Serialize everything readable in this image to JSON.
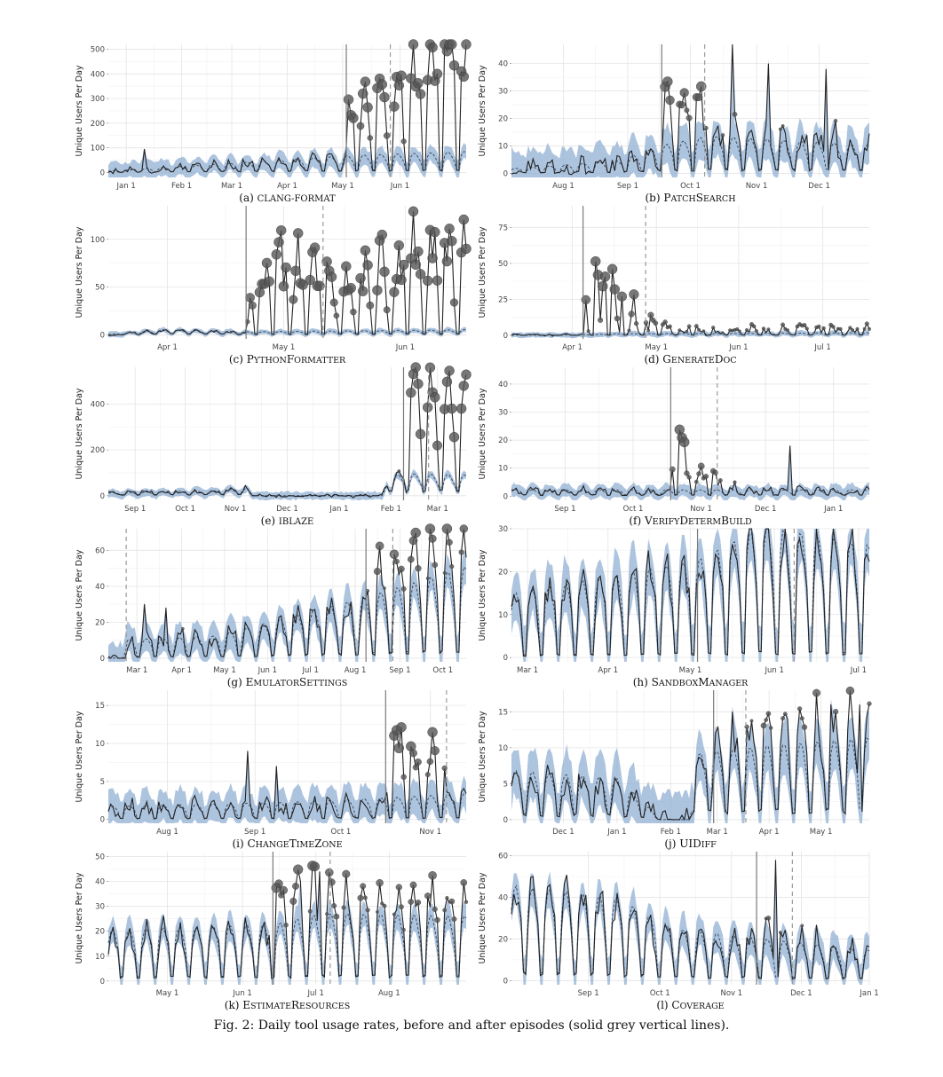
{
  "caption": "Fig. 2: Daily tool usage rates, before and after episodes (solid grey vertical lines).",
  "colors": {
    "band": "#8eadd2",
    "observed": "#222222",
    "expected": "#3f4f60",
    "episode": "#7a7a7a",
    "marker": "#555555"
  },
  "chart_data": [
    {
      "id": "a",
      "type": "line",
      "tag": "(a)",
      "name": "clang-format",
      "ylabel": "Unique Users Per Day",
      "xlim": [
        0,
        1
      ],
      "ylim": [
        -20,
        520
      ],
      "yticks": [
        0,
        100,
        200,
        300,
        400,
        500
      ],
      "xticks": [
        {
          "pos": 0.05,
          "label": "Jan 1"
        },
        {
          "pos": 0.205,
          "label": "Feb 1"
        },
        {
          "pos": 0.345,
          "label": "Mar 1"
        },
        {
          "pos": 0.5,
          "label": "Apr 1"
        },
        {
          "pos": 0.655,
          "label": "May 1"
        },
        {
          "pos": 0.815,
          "label": "Jun 1"
        }
      ],
      "episodes": [
        0.665
      ],
      "dashed": [
        0.788
      ],
      "period": 7,
      "base": [
        [
          0,
          5
        ],
        [
          0.3,
          30
        ],
        [
          0.6,
          55
        ],
        [
          0.66,
          60
        ],
        [
          1,
          75
        ]
      ],
      "weekend": 0.15,
      "band_width": 40,
      "obs_scale": [
        [
          0,
          1
        ],
        [
          0.665,
          1
        ],
        [
          0.67,
          3.5
        ],
        [
          0.75,
          5.3
        ],
        [
          1,
          7
        ]
      ],
      "spikes": [
        {
          "pos": 0.1,
          "val": 95
        }
      ],
      "marker_from": 0.665
    },
    {
      "id": "b",
      "type": "line",
      "tag": "(b)",
      "name": "PatchSearch",
      "ylabel": "Unique Users Per Day",
      "xlim": [
        0,
        1
      ],
      "ylim": [
        -1.5,
        47
      ],
      "yticks": [
        0,
        10,
        20,
        30,
        40
      ],
      "xticks": [
        {
          "pos": 0.145,
          "label": "Aug 1"
        },
        {
          "pos": 0.325,
          "label": "Sep 1"
        },
        {
          "pos": 0.5,
          "label": "Oct 1"
        },
        {
          "pos": 0.685,
          "label": "Nov 1"
        },
        {
          "pos": 0.86,
          "label": "Dec 1"
        }
      ],
      "episodes": [
        0.42
      ],
      "dashed": [
        0.54
      ],
      "period": 7,
      "base": [
        [
          0,
          1.5
        ],
        [
          0.3,
          4
        ],
        [
          0.42,
          9
        ],
        [
          0.55,
          12
        ],
        [
          1,
          9
        ]
      ],
      "weekend": 0.15,
      "band_width": 8,
      "obs_scale": [
        [
          0,
          1
        ],
        [
          0.42,
          1
        ],
        [
          0.43,
          3.6
        ],
        [
          0.53,
          2.4
        ],
        [
          0.56,
          1.4
        ],
        [
          1,
          1.2
        ]
      ],
      "spikes": [
        {
          "pos": 0.62,
          "val": 52
        },
        {
          "pos": 0.72,
          "val": 40
        },
        {
          "pos": 0.88,
          "val": 38
        }
      ],
      "marker_from": 0.42
    },
    {
      "id": "c",
      "type": "line",
      "tag": "(c)",
      "name": "PythonFormatter",
      "ylabel": "Unique Users Per Day",
      "xlim": [
        0,
        1
      ],
      "ylim": [
        -4,
        135
      ],
      "yticks": [
        0,
        50,
        100
      ],
      "xticks": [
        {
          "pos": 0.165,
          "label": "Apr 1"
        },
        {
          "pos": 0.49,
          "label": "May 1"
        },
        {
          "pos": 0.83,
          "label": "Jun 1"
        }
      ],
      "episodes": [
        0.385
      ],
      "dashed": [
        0.6
      ],
      "period": 7,
      "base": [
        [
          0,
          0.5
        ],
        [
          0.15,
          5
        ],
        [
          0.3,
          4
        ],
        [
          0.385,
          3
        ],
        [
          1,
          5
        ]
      ],
      "weekend": 0.3,
      "band_width": 3,
      "obs_scale": [
        [
          0,
          1
        ],
        [
          0.385,
          1
        ],
        [
          0.4,
          17
        ],
        [
          0.47,
          22
        ],
        [
          0.6,
          16
        ],
        [
          1,
          20
        ]
      ],
      "spikes": [],
      "marker_from": 0.385
    },
    {
      "id": "d",
      "type": "line",
      "tag": "(d)",
      "name": "GenerateDoc",
      "ylabel": "Unique Users Per Day",
      "xlim": [
        0,
        1
      ],
      "ylim": [
        -2.5,
        90
      ],
      "yticks": [
        0,
        25,
        50,
        75
      ],
      "xticks": [
        {
          "pos": 0.17,
          "label": "Apr 1"
        },
        {
          "pos": 0.405,
          "label": "May 1"
        },
        {
          "pos": 0.635,
          "label": "Jun 1"
        },
        {
          "pos": 0.87,
          "label": "Jul 1"
        }
      ],
      "episodes": [
        0.2
      ],
      "dashed": [
        0.375
      ],
      "period": 7,
      "base": [
        [
          0,
          0.2
        ],
        [
          0.2,
          0.3
        ],
        [
          0.3,
          1
        ],
        [
          1,
          1.5
        ]
      ],
      "weekend": 0.2,
      "band_width": 2,
      "obs_scale": [
        [
          0,
          1
        ],
        [
          0.2,
          1
        ],
        [
          0.21,
          60
        ],
        [
          0.3,
          22
        ],
        [
          0.38,
          9
        ],
        [
          0.45,
          4
        ],
        [
          1,
          3
        ]
      ],
      "spikes": [],
      "marker_from": 0.2
    },
    {
      "id": "e",
      "type": "line",
      "tag": "(e)",
      "name": "iblaze",
      "ylabel": "Unique Users Per Day",
      "xlim": [
        0,
        1
      ],
      "ylim": [
        -20,
        560
      ],
      "yticks": [
        0,
        200,
        400
      ],
      "xticks": [
        {
          "pos": 0.075,
          "label": "Sep 1"
        },
        {
          "pos": 0.215,
          "label": "Oct 1"
        },
        {
          "pos": 0.355,
          "label": "Nov 1"
        },
        {
          "pos": 0.5,
          "label": "Dec 1"
        },
        {
          "pos": 0.645,
          "label": "Jan 1"
        },
        {
          "pos": 0.79,
          "label": "Feb 1"
        },
        {
          "pos": 0.92,
          "label": "Mar 1"
        }
      ],
      "episodes": [
        0.825
      ],
      "dashed": [
        0.895
      ],
      "period": 7,
      "base": [
        [
          0,
          12
        ],
        [
          0.3,
          20
        ],
        [
          0.39,
          28
        ],
        [
          0.4,
          0
        ],
        [
          0.77,
          0
        ],
        [
          0.775,
          70
        ],
        [
          0.825,
          85
        ],
        [
          1,
          80
        ]
      ],
      "weekend": 0.3,
      "band_width": 20,
      "obs_scale": [
        [
          0,
          1
        ],
        [
          0.825,
          1
        ],
        [
          0.83,
          5.5
        ],
        [
          1,
          5.2
        ]
      ],
      "spikes": [],
      "marker_from": 0.77
    },
    {
      "id": "f",
      "type": "line",
      "tag": "(f)",
      "name": "VerifyDetermBuild",
      "ylabel": "Unique Users Per Day",
      "xlim": [
        0,
        1
      ],
      "ylim": [
        -1.5,
        46
      ],
      "yticks": [
        0,
        10,
        20,
        30,
        40
      ],
      "xticks": [
        {
          "pos": 0.15,
          "label": "Sep 1"
        },
        {
          "pos": 0.34,
          "label": "Oct 1"
        },
        {
          "pos": 0.53,
          "label": "Nov 1"
        },
        {
          "pos": 0.71,
          "label": "Dec 1"
        },
        {
          "pos": 0.9,
          "label": "Jan 1"
        }
      ],
      "episodes": [
        0.445
      ],
      "dashed": [
        0.575
      ],
      "period": 7,
      "base": [
        [
          0,
          2
        ],
        [
          1,
          2
        ]
      ],
      "weekend": 0.25,
      "band_width": 2.5,
      "obs_scale": [
        [
          0,
          1
        ],
        [
          0.445,
          1
        ],
        [
          0.45,
          13
        ],
        [
          0.5,
          6
        ],
        [
          0.58,
          2.5
        ],
        [
          0.65,
          1.2
        ],
        [
          1,
          1
        ]
      ],
      "spikes": [
        {
          "pos": 0.78,
          "val": 18
        }
      ],
      "marker_from": 0.445
    },
    {
      "id": "g",
      "type": "line",
      "tag": "(g)",
      "name": "EmulatorSettings",
      "ylabel": "Unique Users Per Day",
      "xlim": [
        0,
        1
      ],
      "ylim": [
        -2,
        72
      ],
      "yticks": [
        0,
        20,
        40,
        60
      ],
      "xticks": [
        {
          "pos": 0.08,
          "label": "Mar 1"
        },
        {
          "pos": 0.205,
          "label": "Apr 1"
        },
        {
          "pos": 0.325,
          "label": "May 1"
        },
        {
          "pos": 0.445,
          "label": "Jun 1"
        },
        {
          "pos": 0.565,
          "label": "Jul 1"
        },
        {
          "pos": 0.69,
          "label": "Aug 1"
        },
        {
          "pos": 0.815,
          "label": "Sep 1"
        },
        {
          "pos": 0.935,
          "label": "Oct 1"
        }
      ],
      "episodes": [
        0.72
      ],
      "dashed": [
        0.05,
        0.795
      ],
      "period": 7,
      "base": [
        [
          0,
          0
        ],
        [
          0.045,
          0
        ],
        [
          0.05,
          9
        ],
        [
          0.3,
          11
        ],
        [
          0.5,
          20
        ],
        [
          0.72,
          30
        ],
        [
          1,
          45
        ]
      ],
      "weekend": 0.1,
      "band_width": 10,
      "obs_scale": [
        [
          0,
          1
        ],
        [
          0.72,
          1
        ],
        [
          0.73,
          1.6
        ],
        [
          1,
          1.4
        ]
      ],
      "spikes": [
        {
          "pos": 0.1,
          "val": 30
        },
        {
          "pos": 0.16,
          "val": 28
        }
      ],
      "marker_from": 0.05
    },
    {
      "id": "h",
      "type": "line",
      "tag": "(h)",
      "name": "SandboxManager",
      "ylabel": "Unique Users Per Day",
      "xlim": [
        0,
        1
      ],
      "ylim": [
        -1,
        30
      ],
      "yticks": [
        0,
        10,
        20,
        30
      ],
      "xticks": [
        {
          "pos": 0.045,
          "label": "Mar 1"
        },
        {
          "pos": 0.27,
          "label": "Apr 1"
        },
        {
          "pos": 0.5,
          "label": "May 1"
        },
        {
          "pos": 0.735,
          "label": "Jun 1"
        },
        {
          "pos": 0.97,
          "label": "Jul 1"
        }
      ],
      "episodes": [
        0.52
      ],
      "dashed": [
        0.79
      ],
      "period": 7,
      "base": [
        [
          0,
          13
        ],
        [
          0.3,
          17
        ],
        [
          0.52,
          20
        ],
        [
          0.7,
          27
        ],
        [
          1,
          23
        ]
      ],
      "weekend": 0.05,
      "band_width": 7,
      "obs_scale": [
        [
          0,
          1
        ],
        [
          1,
          1
        ]
      ],
      "spikes": [],
      "marker_from": 2
    },
    {
      "id": "i",
      "type": "line",
      "tag": "(i)",
      "name": "ChangeTimeZone",
      "ylabel": "Unique Users Per Day",
      "xlim": [
        0,
        1
      ],
      "ylim": [
        -0.5,
        17
      ],
      "yticks": [
        0,
        5,
        10,
        15
      ],
      "xticks": [
        {
          "pos": 0.165,
          "label": "Aug 1"
        },
        {
          "pos": 0.41,
          "label": "Sep 1"
        },
        {
          "pos": 0.65,
          "label": "Oct 1"
        },
        {
          "pos": 0.9,
          "label": "Nov 1"
        }
      ],
      "episodes": [
        0.775
      ],
      "dashed": [
        0.945
      ],
      "period": 7,
      "base": [
        [
          0,
          1.5
        ],
        [
          0.5,
          2
        ],
        [
          0.775,
          2.5
        ],
        [
          1,
          3
        ]
      ],
      "weekend": 0.1,
      "band_width": 2.5,
      "obs_scale": [
        [
          0,
          1
        ],
        [
          0.775,
          1
        ],
        [
          0.78,
          4
        ],
        [
          0.94,
          2.5
        ],
        [
          0.95,
          1
        ],
        [
          1,
          1
        ]
      ],
      "spikes": [
        {
          "pos": 0.39,
          "val": 9
        },
        {
          "pos": 0.47,
          "val": 7
        }
      ],
      "marker_from": 0.775
    },
    {
      "id": "j",
      "type": "line",
      "tag": "(j)",
      "name": "UIDiff",
      "ylabel": "Unique Users Per Day",
      "xlim": [
        0,
        1
      ],
      "ylim": [
        -0.5,
        18
      ],
      "yticks": [
        0,
        5,
        10,
        15
      ],
      "xticks": [
        {
          "pos": 0.145,
          "label": "Dec 1"
        },
        {
          "pos": 0.295,
          "label": "Jan 1"
        },
        {
          "pos": 0.445,
          "label": "Feb 1"
        },
        {
          "pos": 0.575,
          "label": "Mar 1"
        },
        {
          "pos": 0.72,
          "label": "Apr 1"
        },
        {
          "pos": 0.865,
          "label": "May 1"
        }
      ],
      "episodes": [
        0.565
      ],
      "dashed": [
        0.655
      ],
      "period": 7,
      "base": [
        [
          0,
          6
        ],
        [
          0.3,
          5
        ],
        [
          0.42,
          0
        ],
        [
          0.5,
          0
        ],
        [
          0.5,
          8
        ],
        [
          0.7,
          9
        ],
        [
          1,
          10
        ]
      ],
      "weekend": 0.15,
      "band_width": 4,
      "obs_scale": [
        [
          0,
          1
        ],
        [
          0.565,
          1
        ],
        [
          0.57,
          1.4
        ],
        [
          1,
          1.3
        ]
      ],
      "spikes": [
        {
          "pos": 0.62,
          "val": 15
        },
        {
          "pos": 0.77,
          "val": 14
        },
        {
          "pos": 0.89,
          "val": 16
        },
        {
          "pos": 0.97,
          "val": 16
        }
      ],
      "marker_from": 0.565
    },
    {
      "id": "k",
      "type": "line",
      "tag": "(k)",
      "name": "EstimateResources",
      "ylabel": "Unique Users Per Day",
      "xlim": [
        0,
        1
      ],
      "ylim": [
        -1.5,
        52
      ],
      "yticks": [
        0,
        10,
        20,
        30,
        40,
        50
      ],
      "xticks": [
        {
          "pos": 0.165,
          "label": "May 1"
        },
        {
          "pos": 0.375,
          "label": "Jun 1"
        },
        {
          "pos": 0.58,
          "label": "Jul 1"
        },
        {
          "pos": 0.785,
          "label": "Aug 1"
        }
      ],
      "episodes": [
        0.46
      ],
      "dashed": [
        0.62
      ],
      "period": 7,
      "base": [
        [
          0,
          18
        ],
        [
          0.46,
          20
        ],
        [
          0.6,
          24
        ],
        [
          1,
          23
        ]
      ],
      "weekend": 0.1,
      "band_width": 6,
      "obs_scale": [
        [
          0,
          1
        ],
        [
          0.46,
          1
        ],
        [
          0.47,
          1.7
        ],
        [
          0.62,
          1.4
        ],
        [
          1,
          1.3
        ]
      ],
      "spikes": [
        {
          "pos": 0.54,
          "val": 40
        },
        {
          "pos": 0.59,
          "val": 44
        }
      ],
      "marker_from": 0.46
    },
    {
      "id": "l",
      "type": "line",
      "tag": "(l)",
      "name": "Coverage",
      "ylabel": "Unique Users Per Day",
      "xlim": [
        0,
        1
      ],
      "ylim": [
        -2,
        62
      ],
      "yticks": [
        0,
        20,
        40,
        60
      ],
      "xticks": [
        {
          "pos": 0.215,
          "label": "Sep 1"
        },
        {
          "pos": 0.415,
          "label": "Oct 1"
        },
        {
          "pos": 0.615,
          "label": "Nov 1"
        },
        {
          "pos": 0.81,
          "label": "Dec 1"
        },
        {
          "pos": 1.0,
          "label": "Jan 1"
        }
      ],
      "episodes": [
        0.685
      ],
      "dashed": [
        0.785
      ],
      "period": 7,
      "base": [
        [
          0,
          40
        ],
        [
          0.3,
          35
        ],
        [
          0.45,
          22
        ],
        [
          0.685,
          18
        ],
        [
          1,
          13
        ]
      ],
      "weekend": 0.1,
      "band_width": 9,
      "obs_scale": [
        [
          0,
          1
        ],
        [
          0.685,
          1
        ],
        [
          0.69,
          1.6
        ],
        [
          0.8,
          1.2
        ],
        [
          1,
          1.1
        ]
      ],
      "spikes": [
        {
          "pos": 0.74,
          "val": 58
        }
      ],
      "marker_from": 0.685
    }
  ]
}
